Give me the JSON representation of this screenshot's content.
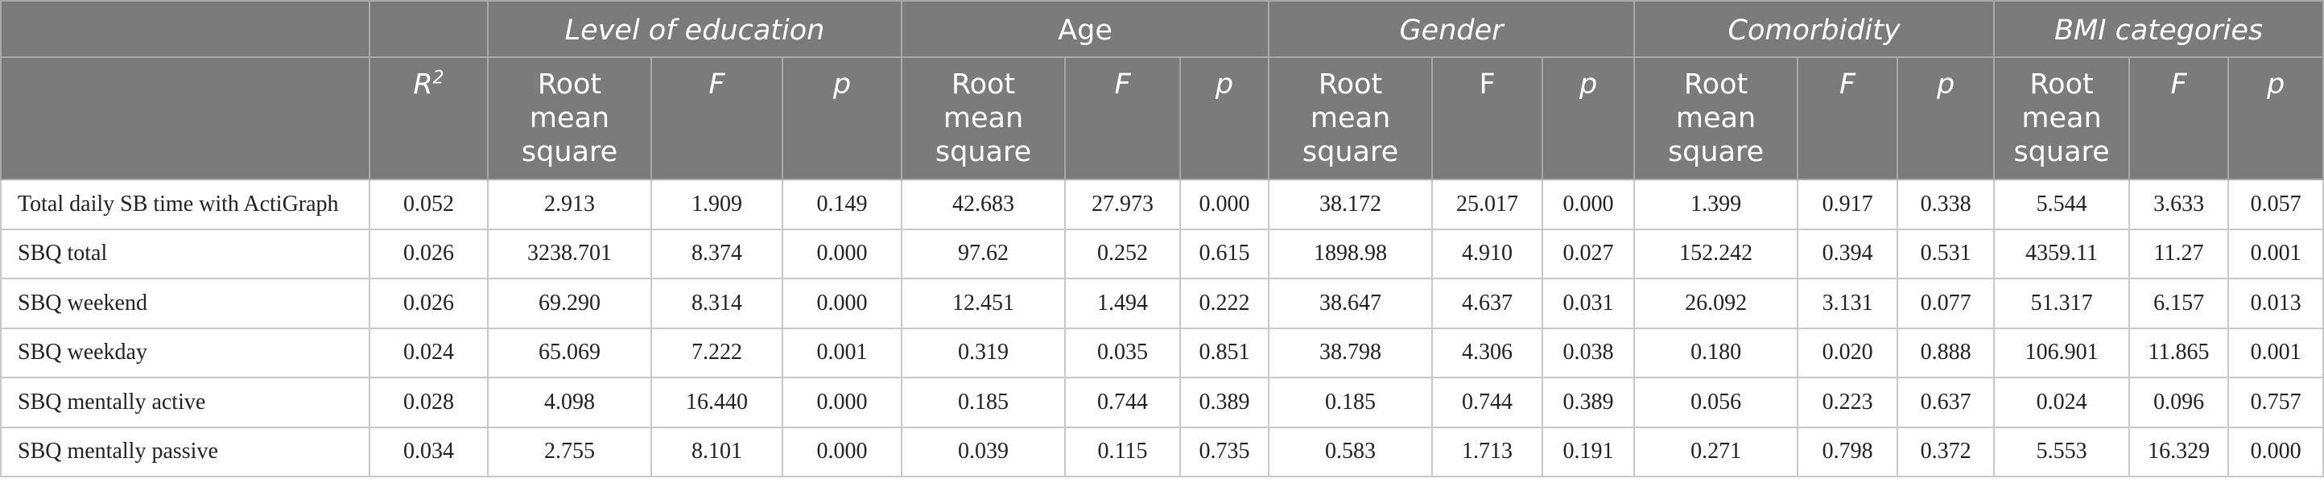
{
  "groups": {
    "education": "Level of education",
    "age": "Age",
    "gender": "Gender",
    "comorbidity": "Comorbidity",
    "bmi": "BMI categories"
  },
  "subheaders": {
    "r_base": "R",
    "r_sup": "2",
    "rms": "Root mean square",
    "f": "F",
    "p": "p"
  },
  "rows": [
    {
      "label": "Total daily SB time with ActiGraph",
      "r2": "0.052",
      "edu": [
        "2.913",
        "1.909",
        "0.149"
      ],
      "age": [
        "42.683",
        "27.973",
        "0.000"
      ],
      "gender": [
        "38.172",
        "25.017",
        "0.000"
      ],
      "comorb": [
        "1.399",
        "0.917",
        "0.338"
      ],
      "bmi": [
        "5.544",
        "3.633",
        "0.057"
      ]
    },
    {
      "label": "SBQ total",
      "r2": "0.026",
      "edu": [
        "3238.701",
        "8.374",
        "0.000"
      ],
      "age": [
        "97.62",
        "0.252",
        "0.615"
      ],
      "gender": [
        "1898.98",
        "4.910",
        "0.027"
      ],
      "comorb": [
        "152.242",
        "0.394",
        "0.531"
      ],
      "bmi": [
        "4359.11",
        "11.27",
        "0.001"
      ]
    },
    {
      "label": "SBQ weekend",
      "r2": "0.026",
      "edu": [
        "69.290",
        "8.314",
        "0.000"
      ],
      "age": [
        "12.451",
        "1.494",
        "0.222"
      ],
      "gender": [
        "38.647",
        "4.637",
        "0.031"
      ],
      "comorb": [
        "26.092",
        "3.131",
        "0.077"
      ],
      "bmi": [
        "51.317",
        "6.157",
        "0.013"
      ]
    },
    {
      "label": "SBQ weekday",
      "r2": "0.024",
      "edu": [
        "65.069",
        "7.222",
        "0.001"
      ],
      "age": [
        "0.319",
        "0.035",
        "0.851"
      ],
      "gender": [
        "38.798",
        "4.306",
        "0.038"
      ],
      "comorb": [
        "0.180",
        "0.020",
        "0.888"
      ],
      "bmi": [
        "106.901",
        "11.865",
        "0.001"
      ]
    },
    {
      "label": "SBQ mentally active",
      "r2": "0.028",
      "edu": [
        "4.098",
        "16.440",
        "0.000"
      ],
      "age": [
        "0.185",
        "0.744",
        "0.389"
      ],
      "gender": [
        "0.185",
        "0.744",
        "0.389"
      ],
      "comorb": [
        "0.056",
        "0.223",
        "0.637"
      ],
      "bmi": [
        "0.024",
        "0.096",
        "0.757"
      ]
    },
    {
      "label": "SBQ mentally passive",
      "r2": "0.034",
      "edu": [
        "2.755",
        "8.101",
        "0.000"
      ],
      "age": [
        "0.039",
        "0.115",
        "0.735"
      ],
      "gender": [
        "0.583",
        "1.713",
        "0.191"
      ],
      "comorb": [
        "0.271",
        "0.798",
        "0.372"
      ],
      "bmi": [
        "5.553",
        "16.329",
        "0.000"
      ]
    }
  ]
}
